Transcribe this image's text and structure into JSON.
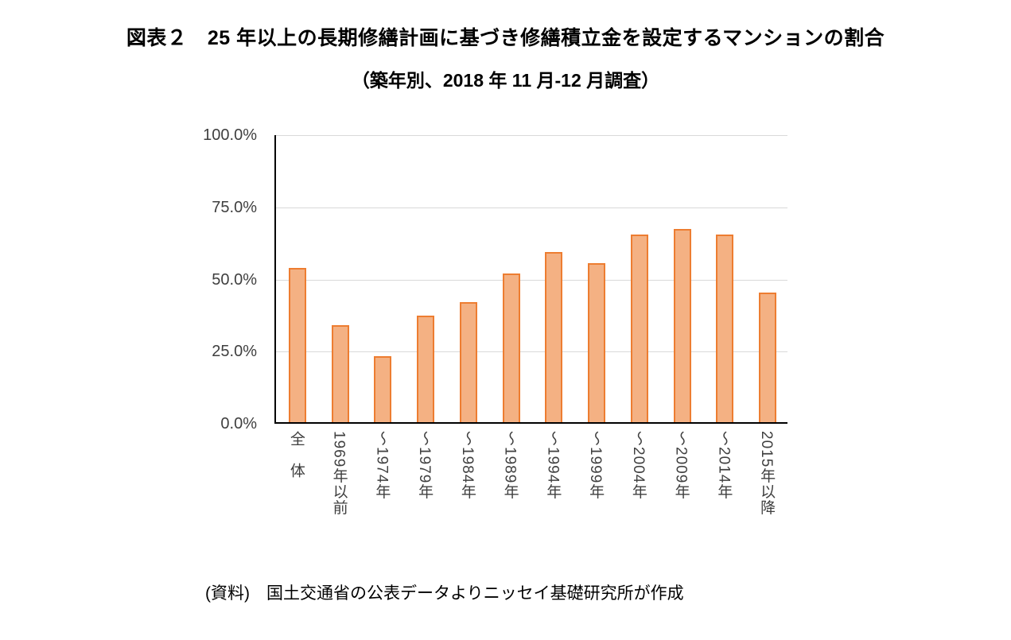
{
  "title_line1": "図表２　25 年以上の長期修繕計画に基づき修繕積立金を設定するマンションの割合",
  "title_line2": "（築年別、2018 年 11 月-12 月調査）",
  "source_note": "(資料)　国土交通省の公表データよりニッセイ基礎研究所が作成",
  "colors": {
    "bar_fill": "#f4b183",
    "bar_border": "#ed7d31",
    "gridline": "#d9d9d9",
    "axis": "#000000"
  },
  "chart_data": {
    "type": "bar",
    "title": "図表２　25 年以上の長期修繕計画に基づき修繕積立金を設定するマンションの割合（築年別、2018 年 11 月-12 月調査）",
    "categories": [
      "全　体",
      "1969年以前",
      "～1974年",
      "～1979年",
      "～1984年",
      "～1989年",
      "～1994年",
      "～1999年",
      "～2004年",
      "～2009年",
      "～2014年",
      "2015年以降"
    ],
    "values": [
      53.5,
      33.5,
      23,
      37,
      41.5,
      51.5,
      59,
      55,
      65,
      67,
      65,
      45
    ],
    "ylabel": "",
    "xlabel": "",
    "ylim": [
      0,
      100
    ],
    "ytick_values": [
      0,
      25,
      50,
      75,
      100
    ],
    "ytick_labels": [
      "0.0%",
      "25.0%",
      "50.0%",
      "75.0%",
      "100.0%"
    ],
    "grid": true,
    "legend": "none"
  }
}
